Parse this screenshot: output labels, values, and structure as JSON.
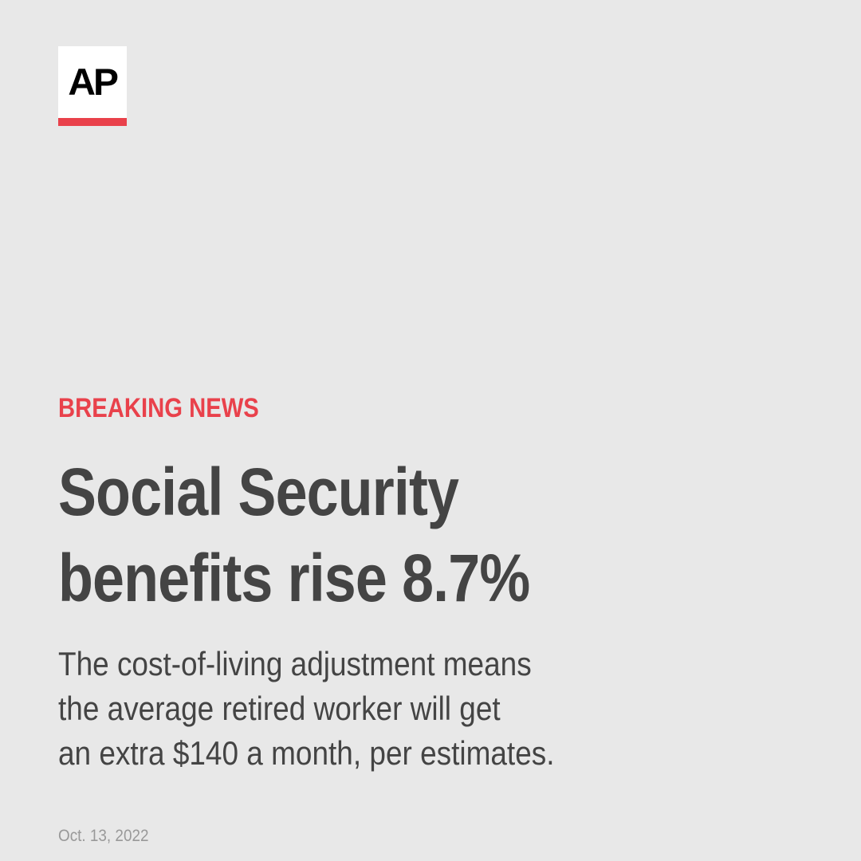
{
  "brand": {
    "logo_text": "AP",
    "accent_color": "#e9414b"
  },
  "kicker": "BREAKING NEWS",
  "headline": {
    "lines": [
      "Social Security",
      "benefits rise 8.7%"
    ]
  },
  "dek": {
    "lines": [
      "The cost-of-living adjustment means",
      "the average retired worker will get",
      "an extra $140 a month, per estimates."
    ]
  },
  "date": "Oct. 13, 2022",
  "colors": {
    "background": "#e8e8e8",
    "text": "#444444",
    "muted": "#999999"
  }
}
